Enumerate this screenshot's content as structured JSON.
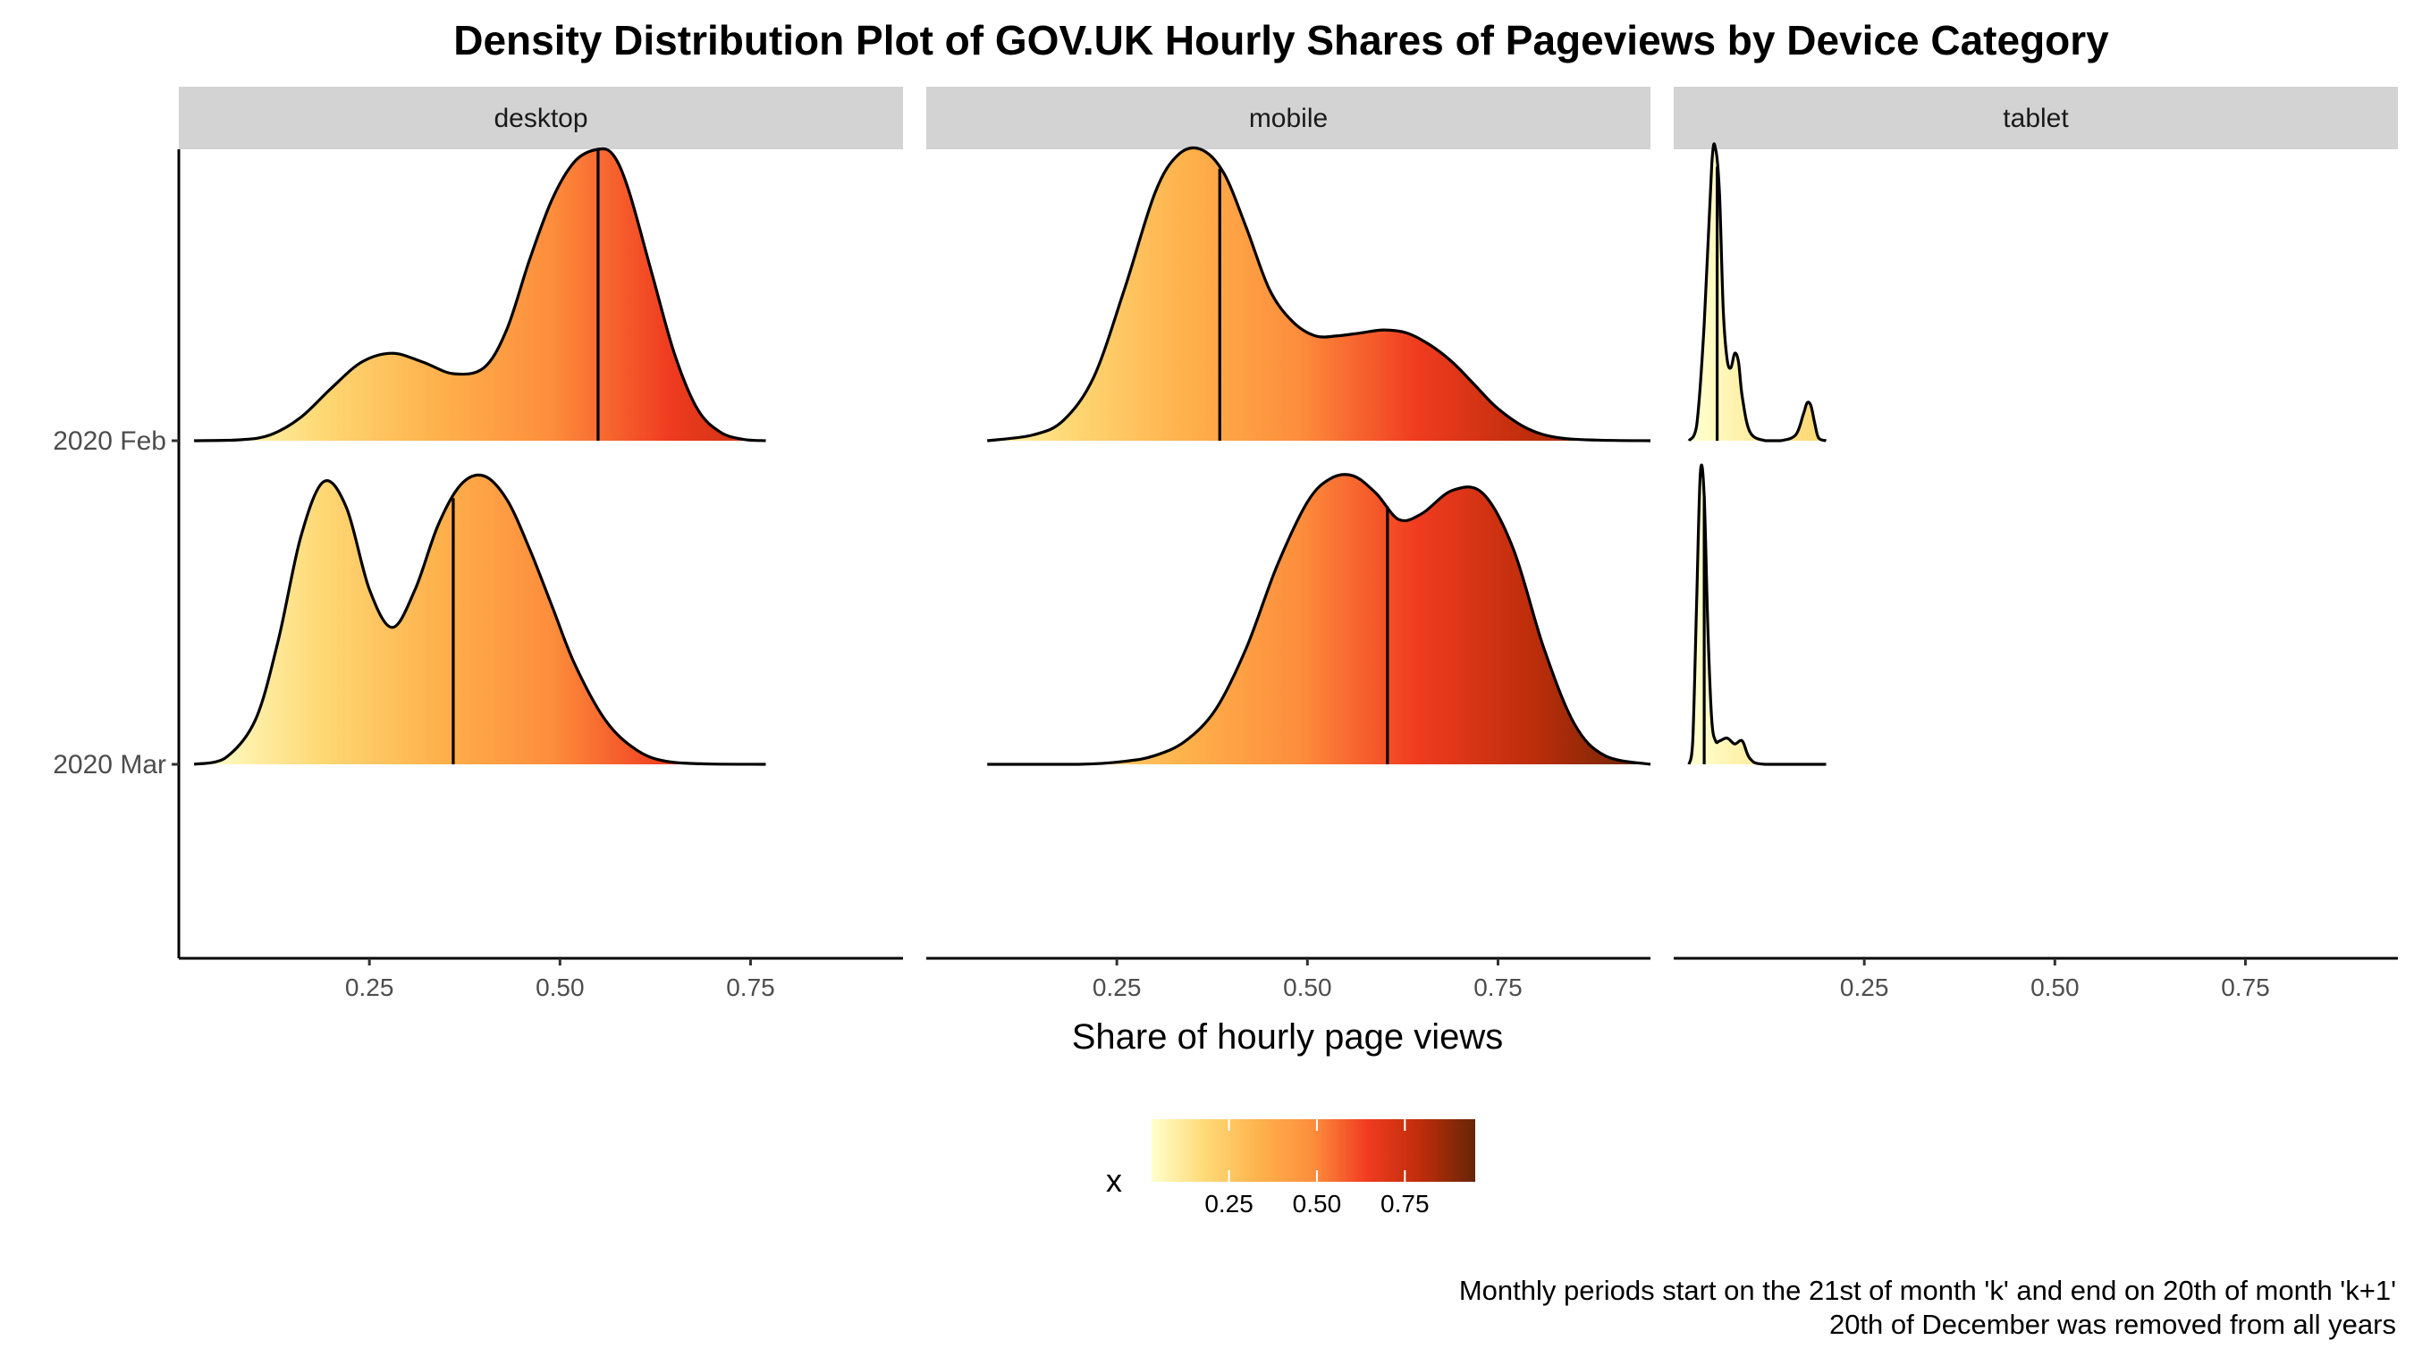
{
  "chart_data": {
    "type": "area",
    "subtype": "density-ridgeline",
    "title": "Density Distribution Plot of GOV.UK Hourly Shares of Pageviews by Device Category",
    "xlabel": "Share of hourly page views",
    "ylabel": "",
    "xlim": [
      0,
      0.95
    ],
    "x_ticks": [
      "0.25",
      "0.50",
      "0.75"
    ],
    "y_categories": [
      "2020 Feb",
      "2020 Mar"
    ],
    "grid": false,
    "facets": [
      {
        "name": "desktop",
        "ridges": [
          {
            "period": "2020 Feb",
            "median": 0.55,
            "density": {
              "x": [
                0.02,
                0.08,
                0.12,
                0.16,
                0.2,
                0.24,
                0.28,
                0.32,
                0.36,
                0.4,
                0.43,
                0.46,
                0.49,
                0.52,
                0.55,
                0.57,
                0.59,
                0.62,
                0.65,
                0.68,
                0.71,
                0.74,
                0.77
              ],
              "y": [
                0,
                0.003,
                0.02,
                0.08,
                0.18,
                0.27,
                0.3,
                0.27,
                0.23,
                0.25,
                0.38,
                0.62,
                0.83,
                0.96,
                1.0,
                0.98,
                0.86,
                0.58,
                0.3,
                0.11,
                0.03,
                0.005,
                0
              ]
            }
          },
          {
            "period": "2020 Mar",
            "median": 0.36,
            "density": {
              "x": [
                0.02,
                0.06,
                0.1,
                0.13,
                0.16,
                0.19,
                0.22,
                0.25,
                0.28,
                0.31,
                0.34,
                0.37,
                0.4,
                0.43,
                0.46,
                0.49,
                0.52,
                0.56,
                0.6,
                0.64,
                0.7,
                0.77
              ],
              "y": [
                0,
                0.02,
                0.15,
                0.42,
                0.78,
                0.97,
                0.88,
                0.6,
                0.47,
                0.6,
                0.82,
                0.96,
                0.99,
                0.91,
                0.74,
                0.54,
                0.34,
                0.15,
                0.05,
                0.01,
                0.001,
                0
              ]
            }
          }
        ]
      },
      {
        "name": "mobile",
        "ridges": [
          {
            "period": "2020 Feb",
            "median": 0.385,
            "density": {
              "x": [
                0.08,
                0.14,
                0.18,
                0.22,
                0.26,
                0.3,
                0.33,
                0.36,
                0.39,
                0.42,
                0.45,
                0.48,
                0.51,
                0.54,
                0.57,
                0.6,
                0.63,
                0.66,
                0.69,
                0.72,
                0.75,
                0.79,
                0.83,
                0.88,
                0.95
              ],
              "y": [
                0,
                0.02,
                0.07,
                0.22,
                0.52,
                0.85,
                0.98,
                1.0,
                0.92,
                0.73,
                0.52,
                0.41,
                0.36,
                0.36,
                0.37,
                0.38,
                0.37,
                0.33,
                0.27,
                0.19,
                0.11,
                0.04,
                0.01,
                0.002,
                0
              ]
            }
          },
          {
            "period": "2020 Mar",
            "median": 0.605,
            "density": {
              "x": [
                0.08,
                0.2,
                0.26,
                0.3,
                0.34,
                0.38,
                0.42,
                0.46,
                0.5,
                0.53,
                0.56,
                0.59,
                0.62,
                0.65,
                0.69,
                0.73,
                0.77,
                0.81,
                0.85,
                0.89,
                0.95
              ],
              "y": [
                0,
                0,
                0.01,
                0.03,
                0.08,
                0.19,
                0.4,
                0.68,
                0.9,
                0.98,
                0.99,
                0.93,
                0.84,
                0.86,
                0.94,
                0.93,
                0.74,
                0.4,
                0.14,
                0.03,
                0
              ]
            }
          }
        ]
      },
      {
        "name": "tablet",
        "ridges": [
          {
            "period": "2020 Feb",
            "median": 0.057,
            "density": {
              "x": [
                0.02,
                0.03,
                0.04,
                0.05,
                0.055,
                0.06,
                0.065,
                0.07,
                0.075,
                0.08,
                0.085,
                0.09,
                0.1,
                0.12,
                0.14,
                0.16,
                0.17,
                0.175,
                0.18,
                0.185,
                0.19,
                0.2
              ],
              "y": [
                0,
                0.05,
                0.4,
                0.95,
                1.0,
                0.85,
                0.45,
                0.28,
                0.25,
                0.3,
                0.27,
                0.15,
                0.03,
                0,
                0,
                0.02,
                0.09,
                0.13,
                0.12,
                0.06,
                0.01,
                0
              ]
            }
          },
          {
            "period": "2020 Mar",
            "median": 0.04,
            "density": {
              "x": [
                0.02,
                0.025,
                0.03,
                0.035,
                0.04,
                0.045,
                0.05,
                0.055,
                0.06,
                0.07,
                0.08,
                0.09,
                0.1,
                0.12,
                0.2
              ],
              "y": [
                0,
                0.08,
                0.55,
                1.0,
                0.92,
                0.45,
                0.15,
                0.08,
                0.08,
                0.09,
                0.07,
                0.08,
                0.02,
                0,
                0
              ]
            }
          }
        ]
      }
    ],
    "legend": {
      "title": "x",
      "position": "bottom",
      "range": [
        0.03,
        0.95
      ],
      "ticks": [
        "0.25",
        "0.50",
        "0.75"
      ],
      "colors": [
        "#ffffcc",
        "#fed976",
        "#feb24c",
        "#fd8d3c",
        "#f03b20",
        "#bd2d0a",
        "#662506"
      ]
    },
    "caption": [
      "Monthly periods start on the 21st of month 'k' and end on 20th of month 'k+1'",
      "20th of December was removed from all years"
    ]
  }
}
